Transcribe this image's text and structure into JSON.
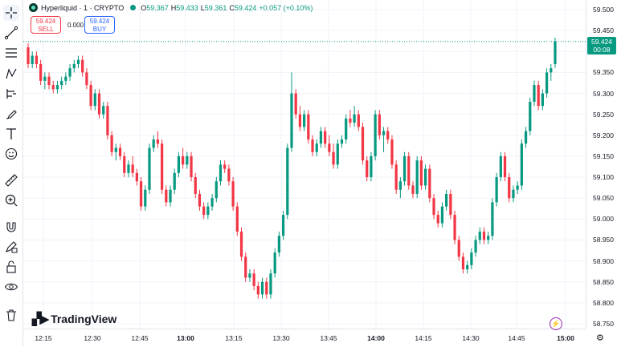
{
  "symbol": {
    "name": "Hyperliquid · 1 · CRYPTO"
  },
  "ohlc": {
    "o_label": "O",
    "o_value": "59.367",
    "h_label": "H",
    "h_value": "59.433",
    "l_label": "L",
    "l_value": "59.361",
    "c_label": "C",
    "c_value": "59.424",
    "change": "+0.057 (+0.10%)"
  },
  "trade": {
    "sell_price": "59.424",
    "sell_label": "SELL",
    "spread": "0.000",
    "buy_price": "59.424",
    "buy_label": "BUY"
  },
  "last_price": {
    "value": "59.424",
    "countdown": "00:08"
  },
  "logo_text": "TradingView",
  "price_ticks": [
    "59.500",
    "59.450",
    "59.400",
    "59.350",
    "59.300",
    "59.250",
    "59.200",
    "59.150",
    "59.100",
    "59.050",
    "59.000",
    "58.950",
    "58.900",
    "58.850",
    "58.800",
    "58.750"
  ],
  "time_ticks": [
    {
      "label": "12:15",
      "bold": false
    },
    {
      "label": "12:30",
      "bold": false
    },
    {
      "label": "12:45",
      "bold": false
    },
    {
      "label": "13:00",
      "bold": true
    },
    {
      "label": "13:15",
      "bold": false
    },
    {
      "label": "13:30",
      "bold": false
    },
    {
      "label": "13:45",
      "bold": false
    },
    {
      "label": "14:00",
      "bold": true
    },
    {
      "label": "14:15",
      "bold": false
    },
    {
      "label": "14:30",
      "bold": false
    },
    {
      "label": "14:45",
      "bold": false
    },
    {
      "label": "15:00",
      "bold": true
    }
  ],
  "colors": {
    "up": "#089981",
    "down": "#f23645",
    "grid": "#f0f3fa"
  },
  "toolbar_icons": [
    "crosshair-icon",
    "trend-line-icon",
    "fib-retracement-icon",
    "pattern-icon",
    "prediction-icon",
    "brush-icon",
    "text-icon",
    "emoji-icon",
    "ruler-icon",
    "zoom-icon",
    "magnet-icon",
    "lock-drawing-icon",
    "lock-icon",
    "eye-icon",
    "trash-icon"
  ],
  "chart_data": {
    "type": "candlestick",
    "x_range": [
      "12:08",
      "15:01"
    ],
    "ylim": [
      58.75,
      59.5
    ],
    "candles": [
      [
        59.41,
        59.42,
        59.36,
        59.37
      ],
      [
        59.37,
        59.4,
        59.36,
        59.39
      ],
      [
        59.39,
        59.4,
        59.36,
        59.37
      ],
      [
        59.37,
        59.38,
        59.32,
        59.33
      ],
      [
        59.33,
        59.35,
        59.31,
        59.34
      ],
      [
        59.34,
        59.35,
        59.31,
        59.32
      ],
      [
        59.32,
        59.33,
        59.3,
        59.31
      ],
      [
        59.31,
        59.33,
        59.3,
        59.32
      ],
      [
        59.32,
        59.34,
        59.31,
        59.33
      ],
      [
        59.33,
        59.35,
        59.32,
        59.34
      ],
      [
        59.34,
        59.37,
        59.33,
        59.36
      ],
      [
        59.36,
        59.38,
        59.35,
        59.37
      ],
      [
        59.37,
        59.39,
        59.36,
        59.38
      ],
      [
        59.38,
        59.39,
        59.34,
        59.35
      ],
      [
        59.35,
        59.36,
        59.31,
        59.32
      ],
      [
        59.32,
        59.33,
        59.26,
        59.27
      ],
      [
        59.27,
        59.31,
        59.26,
        59.3
      ],
      [
        59.3,
        59.31,
        59.24,
        59.25
      ],
      [
        59.25,
        59.28,
        59.24,
        59.27
      ],
      [
        59.27,
        59.28,
        59.19,
        59.2
      ],
      [
        59.2,
        59.21,
        59.15,
        59.16
      ],
      [
        59.16,
        59.18,
        59.14,
        59.17
      ],
      [
        59.17,
        59.18,
        59.14,
        59.15
      ],
      [
        59.15,
        59.16,
        59.1,
        59.11
      ],
      [
        59.11,
        59.14,
        59.1,
        59.13
      ],
      [
        59.13,
        59.15,
        59.1,
        59.11
      ],
      [
        59.11,
        59.12,
        59.08,
        59.09
      ],
      [
        59.09,
        59.1,
        59.02,
        59.03
      ],
      [
        59.03,
        59.08,
        59.02,
        59.07
      ],
      [
        59.07,
        59.18,
        59.06,
        59.17
      ],
      [
        59.17,
        59.2,
        59.16,
        59.19
      ],
      [
        59.19,
        59.21,
        59.17,
        59.18
      ],
      [
        59.18,
        59.19,
        59.06,
        59.07
      ],
      [
        59.07,
        59.08,
        59.03,
        59.04
      ],
      [
        59.04,
        59.08,
        59.03,
        59.07
      ],
      [
        59.07,
        59.12,
        59.06,
        59.11
      ],
      [
        59.11,
        59.16,
        59.1,
        59.15
      ],
      [
        59.15,
        59.17,
        59.12,
        59.13
      ],
      [
        59.13,
        59.16,
        59.12,
        59.15
      ],
      [
        59.15,
        59.16,
        59.09,
        59.1
      ],
      [
        59.1,
        59.11,
        59.05,
        59.06
      ],
      [
        59.06,
        59.07,
        59.02,
        59.03
      ],
      [
        59.03,
        59.04,
        59.0,
        59.01
      ],
      [
        59.01,
        59.04,
        59.0,
        59.03
      ],
      [
        59.03,
        59.06,
        59.02,
        59.05
      ],
      [
        59.05,
        59.1,
        59.04,
        59.09
      ],
      [
        59.09,
        59.14,
        59.08,
        59.13
      ],
      [
        59.13,
        59.14,
        59.11,
        59.12
      ],
      [
        59.12,
        59.13,
        59.08,
        59.09
      ],
      [
        59.09,
        59.1,
        59.02,
        59.03
      ],
      [
        59.03,
        59.04,
        58.96,
        58.97
      ],
      [
        58.97,
        58.98,
        58.9,
        58.91
      ],
      [
        58.91,
        58.92,
        58.85,
        58.86
      ],
      [
        58.86,
        58.88,
        58.85,
        58.87
      ],
      [
        58.87,
        58.88,
        58.83,
        58.84
      ],
      [
        58.84,
        58.85,
        58.81,
        58.82
      ],
      [
        58.82,
        58.86,
        58.81,
        58.85
      ],
      [
        58.85,
        58.86,
        58.81,
        58.82
      ],
      [
        58.82,
        58.88,
        58.81,
        58.87
      ],
      [
        58.87,
        58.93,
        58.86,
        58.92
      ],
      [
        58.92,
        58.97,
        58.91,
        58.96
      ],
      [
        58.96,
        59.02,
        58.95,
        59.01
      ],
      [
        59.01,
        59.18,
        59.0,
        59.17
      ],
      [
        59.17,
        59.35,
        59.16,
        59.3
      ],
      [
        59.3,
        59.31,
        59.24,
        59.25
      ],
      [
        59.25,
        59.27,
        59.21,
        59.22
      ],
      [
        59.22,
        59.26,
        59.21,
        59.25
      ],
      [
        59.25,
        59.26,
        59.18,
        59.19
      ],
      [
        59.19,
        59.2,
        59.15,
        59.16
      ],
      [
        59.16,
        59.19,
        59.15,
        59.18
      ],
      [
        59.18,
        59.22,
        59.17,
        59.21
      ],
      [
        59.21,
        59.22,
        59.17,
        59.18
      ],
      [
        59.18,
        59.2,
        59.15,
        59.16
      ],
      [
        59.16,
        59.18,
        59.12,
        59.13
      ],
      [
        59.13,
        59.19,
        59.12,
        59.18
      ],
      [
        59.18,
        59.2,
        59.17,
        59.19
      ],
      [
        59.19,
        59.25,
        59.18,
        59.24
      ],
      [
        59.24,
        59.26,
        59.22,
        59.23
      ],
      [
        59.23,
        59.27,
        59.22,
        59.25
      ],
      [
        59.25,
        59.26,
        59.21,
        59.22
      ],
      [
        59.22,
        59.23,
        59.13,
        59.14
      ],
      [
        59.14,
        59.15,
        59.09,
        59.1
      ],
      [
        59.1,
        59.16,
        59.09,
        59.15
      ],
      [
        59.15,
        59.26,
        59.14,
        59.25
      ],
      [
        59.25,
        59.26,
        59.19,
        59.2
      ],
      [
        59.2,
        59.22,
        59.16,
        59.21
      ],
      [
        59.21,
        59.22,
        59.18,
        59.19
      ],
      [
        59.19,
        59.2,
        59.12,
        59.13
      ],
      [
        59.13,
        59.14,
        59.06,
        59.07
      ],
      [
        59.07,
        59.1,
        59.05,
        59.09
      ],
      [
        59.09,
        59.16,
        59.08,
        59.15
      ],
      [
        59.15,
        59.16,
        59.07,
        59.08
      ],
      [
        59.08,
        59.09,
        59.05,
        59.06
      ],
      [
        59.06,
        59.15,
        59.05,
        59.14
      ],
      [
        59.14,
        59.15,
        59.07,
        59.08
      ],
      [
        59.08,
        59.13,
        59.07,
        59.12
      ],
      [
        59.12,
        59.13,
        59.04,
        59.05
      ],
      [
        59.05,
        59.06,
        59.0,
        59.01
      ],
      [
        59.01,
        59.02,
        58.98,
        58.99
      ],
      [
        58.99,
        59.04,
        58.98,
        59.03
      ],
      [
        59.03,
        59.07,
        59.02,
        59.06
      ],
      [
        59.06,
        59.07,
        59.0,
        59.01
      ],
      [
        59.01,
        59.02,
        58.94,
        58.95
      ],
      [
        58.95,
        58.96,
        58.9,
        58.91
      ],
      [
        58.91,
        58.92,
        58.87,
        58.88
      ],
      [
        58.88,
        58.9,
        58.87,
        58.89
      ],
      [
        58.89,
        58.93,
        58.88,
        58.92
      ],
      [
        58.92,
        58.96,
        58.91,
        58.95
      ],
      [
        58.95,
        58.98,
        58.94,
        58.97
      ],
      [
        58.97,
        58.98,
        58.94,
        58.95
      ],
      [
        58.95,
        58.97,
        58.94,
        58.96
      ],
      [
        58.96,
        59.05,
        58.95,
        59.04
      ],
      [
        59.04,
        59.11,
        59.03,
        59.1
      ],
      [
        59.1,
        59.16,
        59.09,
        59.15
      ],
      [
        59.15,
        59.16,
        59.09,
        59.1
      ],
      [
        59.1,
        59.11,
        59.04,
        59.05
      ],
      [
        59.05,
        59.08,
        59.04,
        59.07
      ],
      [
        59.07,
        59.09,
        59.06,
        59.08
      ],
      [
        59.08,
        59.19,
        59.07,
        59.18
      ],
      [
        59.18,
        59.22,
        59.17,
        59.21
      ],
      [
        59.21,
        59.29,
        59.2,
        59.28
      ],
      [
        59.28,
        59.33,
        59.27,
        59.32
      ],
      [
        59.32,
        59.33,
        59.26,
        59.27
      ],
      [
        59.27,
        59.31,
        59.26,
        59.3
      ],
      [
        59.3,
        59.36,
        59.29,
        59.35
      ],
      [
        59.35,
        59.37,
        59.33,
        59.36
      ],
      [
        59.37,
        59.433,
        59.361,
        59.424
      ]
    ]
  }
}
